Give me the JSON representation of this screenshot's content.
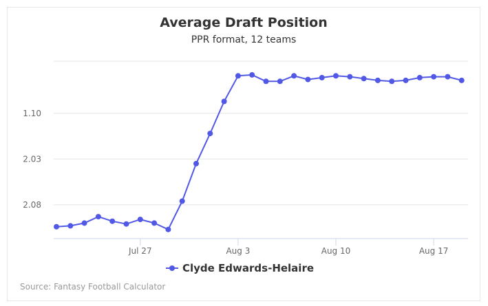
{
  "chart_data": {
    "type": "line",
    "title": "Average Draft Position",
    "subtitle": "PPR format, 12 teams",
    "xlabel": "",
    "ylabel": "",
    "x_ticks": [
      {
        "label": "Jul 27",
        "index": 6
      },
      {
        "label": "Aug 3",
        "index": 13
      },
      {
        "label": "Aug 10",
        "index": 20
      },
      {
        "label": "Aug 17",
        "index": 27
      }
    ],
    "y_ticks": [
      "1.10",
      "2.03",
      "2.08"
    ],
    "y_tick_values": [
      10,
      15,
      20
    ],
    "y_axis_reversed": true,
    "ylim": [
      4.3,
      23.7
    ],
    "x": [
      "Jul 21",
      "Jul 22",
      "Jul 23",
      "Jul 24",
      "Jul 25",
      "Jul 26",
      "Jul 27",
      "Jul 28",
      "Jul 29",
      "Jul 30",
      "Jul 31",
      "Aug 1",
      "Aug 2",
      "Aug 3",
      "Aug 4",
      "Aug 5",
      "Aug 6",
      "Aug 7",
      "Aug 8",
      "Aug 9",
      "Aug 10",
      "Aug 11",
      "Aug 12",
      "Aug 13",
      "Aug 14",
      "Aug 15",
      "Aug 16",
      "Aug 17",
      "Aug 18",
      "Aug 19"
    ],
    "series": [
      {
        "name": "Clyde Edwards-Helaire",
        "color": "#5058e5",
        "values": [
          22.4,
          22.3,
          22.0,
          21.3,
          21.8,
          22.1,
          21.6,
          22.0,
          22.7,
          19.6,
          15.5,
          12.2,
          8.7,
          5.9,
          5.8,
          6.5,
          6.5,
          5.9,
          6.3,
          6.1,
          5.9,
          6.0,
          6.2,
          6.4,
          6.5,
          6.4,
          6.1,
          6.0,
          6.0,
          6.4
        ]
      }
    ],
    "grid": true,
    "legend_position": "bottom-center",
    "credit": "Source: Fantasy Football Calculator"
  }
}
